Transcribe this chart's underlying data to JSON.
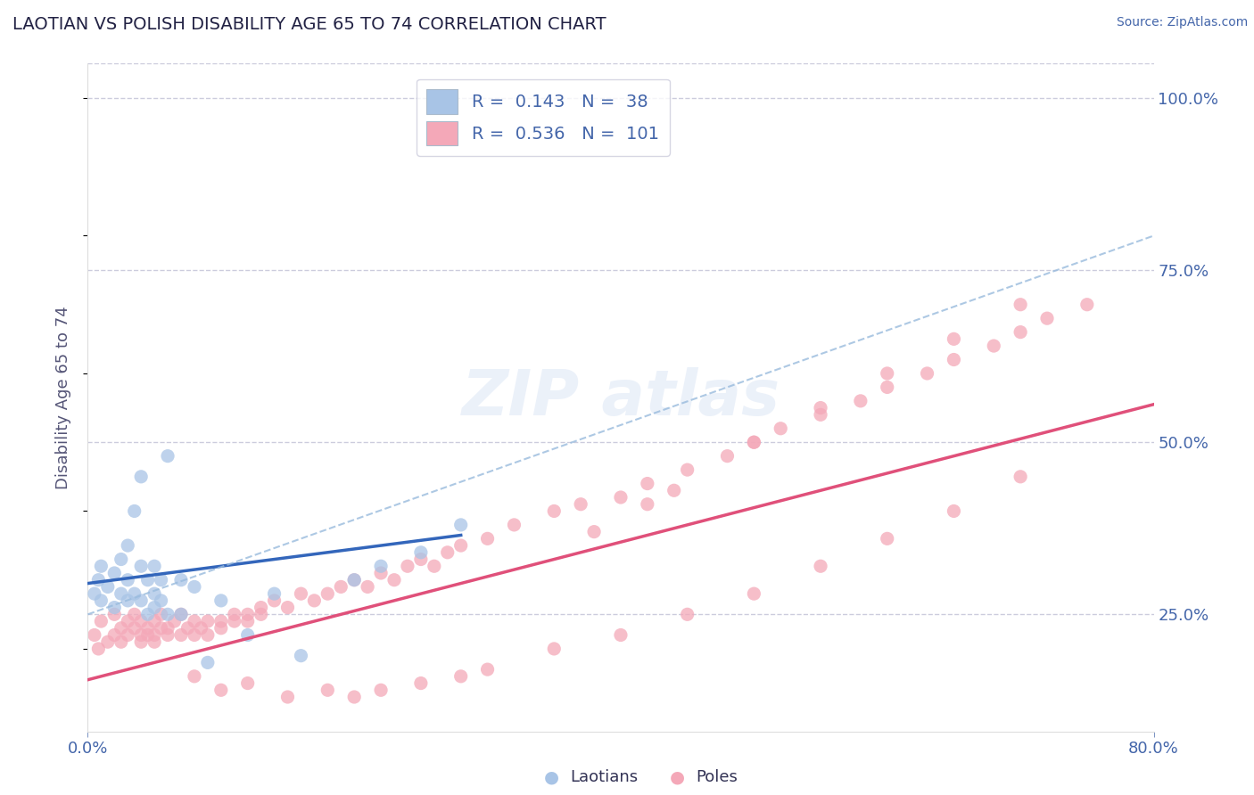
{
  "title": "LAOTIAN VS POLISH DISABILITY AGE 65 TO 74 CORRELATION CHART",
  "source": "Source: ZipAtlas.com",
  "ylabel": "Disability Age 65 to 74",
  "xlim": [
    0.0,
    0.8
  ],
  "ylim": [
    0.08,
    1.05
  ],
  "ytick_right_vals": [
    0.25,
    0.5,
    0.75,
    1.0
  ],
  "ytick_right_labels": [
    "25.0%",
    "50.0%",
    "75.0%",
    "100.0%"
  ],
  "laotian_R": 0.143,
  "laotian_N": 38,
  "polish_R": 0.536,
  "polish_N": 101,
  "laotian_color": "#a8c4e6",
  "laotian_line_color": "#3366bb",
  "polish_color": "#f4a8b8",
  "polish_line_color": "#e0507a",
  "text_color": "#4466aa",
  "grid_color": "#ccccdd",
  "laotian_x": [
    0.005,
    0.008,
    0.01,
    0.01,
    0.015,
    0.02,
    0.02,
    0.025,
    0.025,
    0.03,
    0.03,
    0.03,
    0.035,
    0.035,
    0.04,
    0.04,
    0.04,
    0.045,
    0.045,
    0.05,
    0.05,
    0.05,
    0.055,
    0.055,
    0.06,
    0.06,
    0.07,
    0.07,
    0.08,
    0.09,
    0.1,
    0.12,
    0.14,
    0.16,
    0.2,
    0.22,
    0.25,
    0.28
  ],
  "laotian_y": [
    0.28,
    0.3,
    0.32,
    0.27,
    0.29,
    0.26,
    0.31,
    0.28,
    0.33,
    0.27,
    0.3,
    0.35,
    0.28,
    0.4,
    0.27,
    0.32,
    0.45,
    0.25,
    0.3,
    0.28,
    0.32,
    0.26,
    0.3,
    0.27,
    0.25,
    0.48,
    0.3,
    0.25,
    0.29,
    0.18,
    0.27,
    0.22,
    0.28,
    0.19,
    0.3,
    0.32,
    0.34,
    0.38
  ],
  "polish_x": [
    0.005,
    0.008,
    0.01,
    0.015,
    0.02,
    0.02,
    0.025,
    0.025,
    0.03,
    0.03,
    0.035,
    0.035,
    0.04,
    0.04,
    0.04,
    0.045,
    0.045,
    0.05,
    0.05,
    0.05,
    0.055,
    0.055,
    0.06,
    0.06,
    0.065,
    0.07,
    0.07,
    0.075,
    0.08,
    0.08,
    0.085,
    0.09,
    0.09,
    0.1,
    0.1,
    0.11,
    0.11,
    0.12,
    0.12,
    0.13,
    0.13,
    0.14,
    0.15,
    0.16,
    0.17,
    0.18,
    0.19,
    0.2,
    0.21,
    0.22,
    0.23,
    0.24,
    0.25,
    0.26,
    0.27,
    0.28,
    0.3,
    0.32,
    0.35,
    0.37,
    0.4,
    0.42,
    0.45,
    0.48,
    0.5,
    0.52,
    0.55,
    0.58,
    0.6,
    0.63,
    0.65,
    0.68,
    0.7,
    0.72,
    0.75,
    0.38,
    0.42,
    0.44,
    0.5,
    0.55,
    0.6,
    0.65,
    0.7,
    0.08,
    0.1,
    0.12,
    0.15,
    0.18,
    0.2,
    0.22,
    0.25,
    0.28,
    0.3,
    0.35,
    0.4,
    0.45,
    0.5,
    0.55,
    0.6,
    0.65,
    0.7
  ],
  "polish_y": [
    0.22,
    0.2,
    0.24,
    0.21,
    0.22,
    0.25,
    0.23,
    0.21,
    0.24,
    0.22,
    0.23,
    0.25,
    0.22,
    0.24,
    0.21,
    0.23,
    0.22,
    0.24,
    0.22,
    0.21,
    0.23,
    0.25,
    0.22,
    0.23,
    0.24,
    0.22,
    0.25,
    0.23,
    0.24,
    0.22,
    0.23,
    0.24,
    0.22,
    0.24,
    0.23,
    0.25,
    0.24,
    0.25,
    0.24,
    0.26,
    0.25,
    0.27,
    0.26,
    0.28,
    0.27,
    0.28,
    0.29,
    0.3,
    0.29,
    0.31,
    0.3,
    0.32,
    0.33,
    0.32,
    0.34,
    0.35,
    0.36,
    0.38,
    0.4,
    0.41,
    0.42,
    0.44,
    0.46,
    0.48,
    0.5,
    0.52,
    0.54,
    0.56,
    0.58,
    0.6,
    0.62,
    0.64,
    0.66,
    0.68,
    0.7,
    0.37,
    0.41,
    0.43,
    0.5,
    0.55,
    0.6,
    0.65,
    0.7,
    0.16,
    0.14,
    0.15,
    0.13,
    0.14,
    0.13,
    0.14,
    0.15,
    0.16,
    0.17,
    0.2,
    0.22,
    0.25,
    0.28,
    0.32,
    0.36,
    0.4,
    0.45
  ],
  "lao_line_x0": 0.0,
  "lao_line_y0": 0.295,
  "lao_line_x1": 0.28,
  "lao_line_y1": 0.365,
  "pol_line_x0": 0.0,
  "pol_line_y0": 0.155,
  "pol_line_x1": 0.8,
  "pol_line_y1": 0.555,
  "dash_line_x0": 0.0,
  "dash_line_y0": 0.25,
  "dash_line_x1": 0.8,
  "dash_line_y1": 0.8
}
